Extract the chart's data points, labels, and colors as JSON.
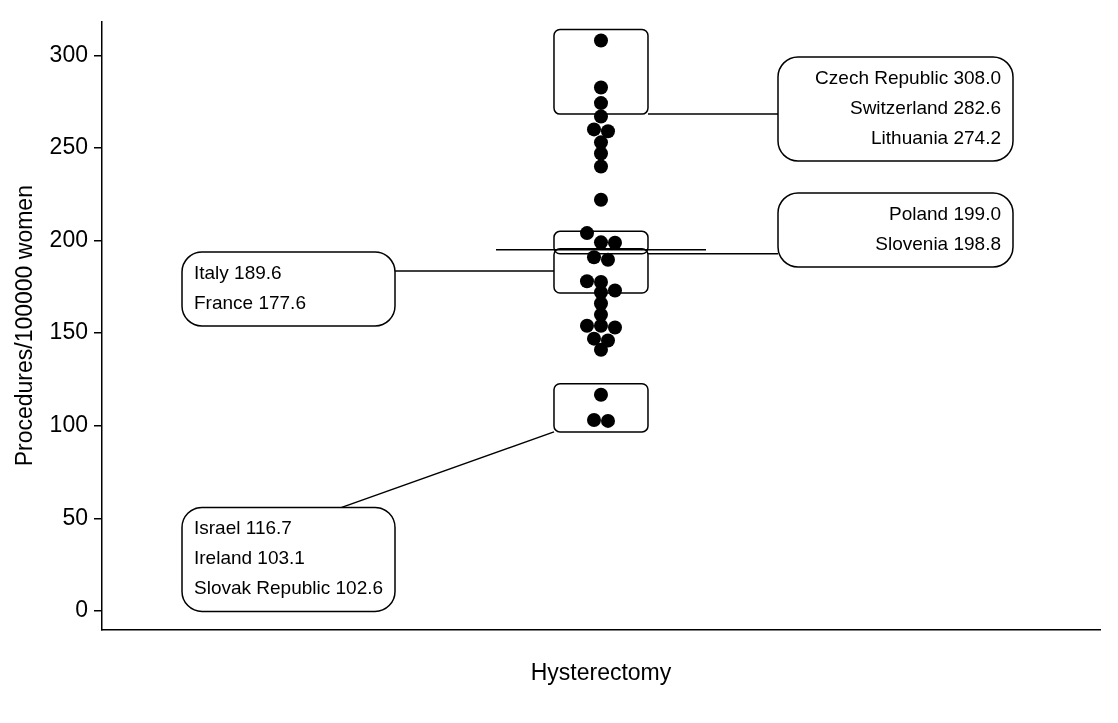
{
  "chart_data": {
    "type": "scatter",
    "ylabel": "Procedures/100000 women",
    "categories": [
      "Hysterectomy"
    ],
    "series": [
      {
        "color": "#000000",
        "x": [
          "Hysterectomy",
          "Hysterectomy",
          "Hysterectomy",
          "Hysterectomy",
          "Hysterectomy",
          "Hysterectomy",
          "Hysterectomy",
          "Hysterectomy",
          "Hysterectomy",
          "Hysterectomy",
          "Hysterectomy",
          "Hysterectomy",
          "Hysterectomy",
          "Hysterectomy",
          "Hysterectomy",
          "Hysterectomy",
          "Hysterectomy",
          "Hysterectomy",
          "Hysterectomy",
          "Hysterectomy",
          "Hysterectomy",
          "Hysterectomy",
          "Hysterectomy",
          "Hysterectomy",
          "Hysterectomy",
          "Hysterectomy",
          "Hysterectomy",
          "Hysterectomy",
          "Hysterectomy",
          "Hysterectomy"
        ],
        "values": [
          308.0,
          282.6,
          274.2,
          267,
          260,
          259,
          253,
          247,
          240,
          222,
          204,
          199.0,
          198.8,
          191,
          189.6,
          178,
          177.6,
          173,
          172,
          166,
          160,
          154,
          154,
          153,
          147,
          146,
          141,
          116.7,
          103.1,
          102.6
        ]
      }
    ],
    "marker": "circle",
    "ylim": [
      -10,
      318
    ],
    "yticks": [
      0,
      50,
      100,
      150,
      200,
      250,
      300
    ],
    "grid": false,
    "legend": false,
    "ref_lines": [
      {
        "axis": "y",
        "value": 195,
        "color": "#000000"
      }
    ],
    "annotations": [
      "Czech Republic 308.0",
      "Switzerland 282.6",
      "Lithuania 274.2",
      "Poland 199.0",
      "Slovenia 198.8",
      "Italy 189.6",
      "France 177.6",
      "Israel 116.7",
      "Ireland 103.1",
      "Slovak Republic 102.6"
    ]
  }
}
